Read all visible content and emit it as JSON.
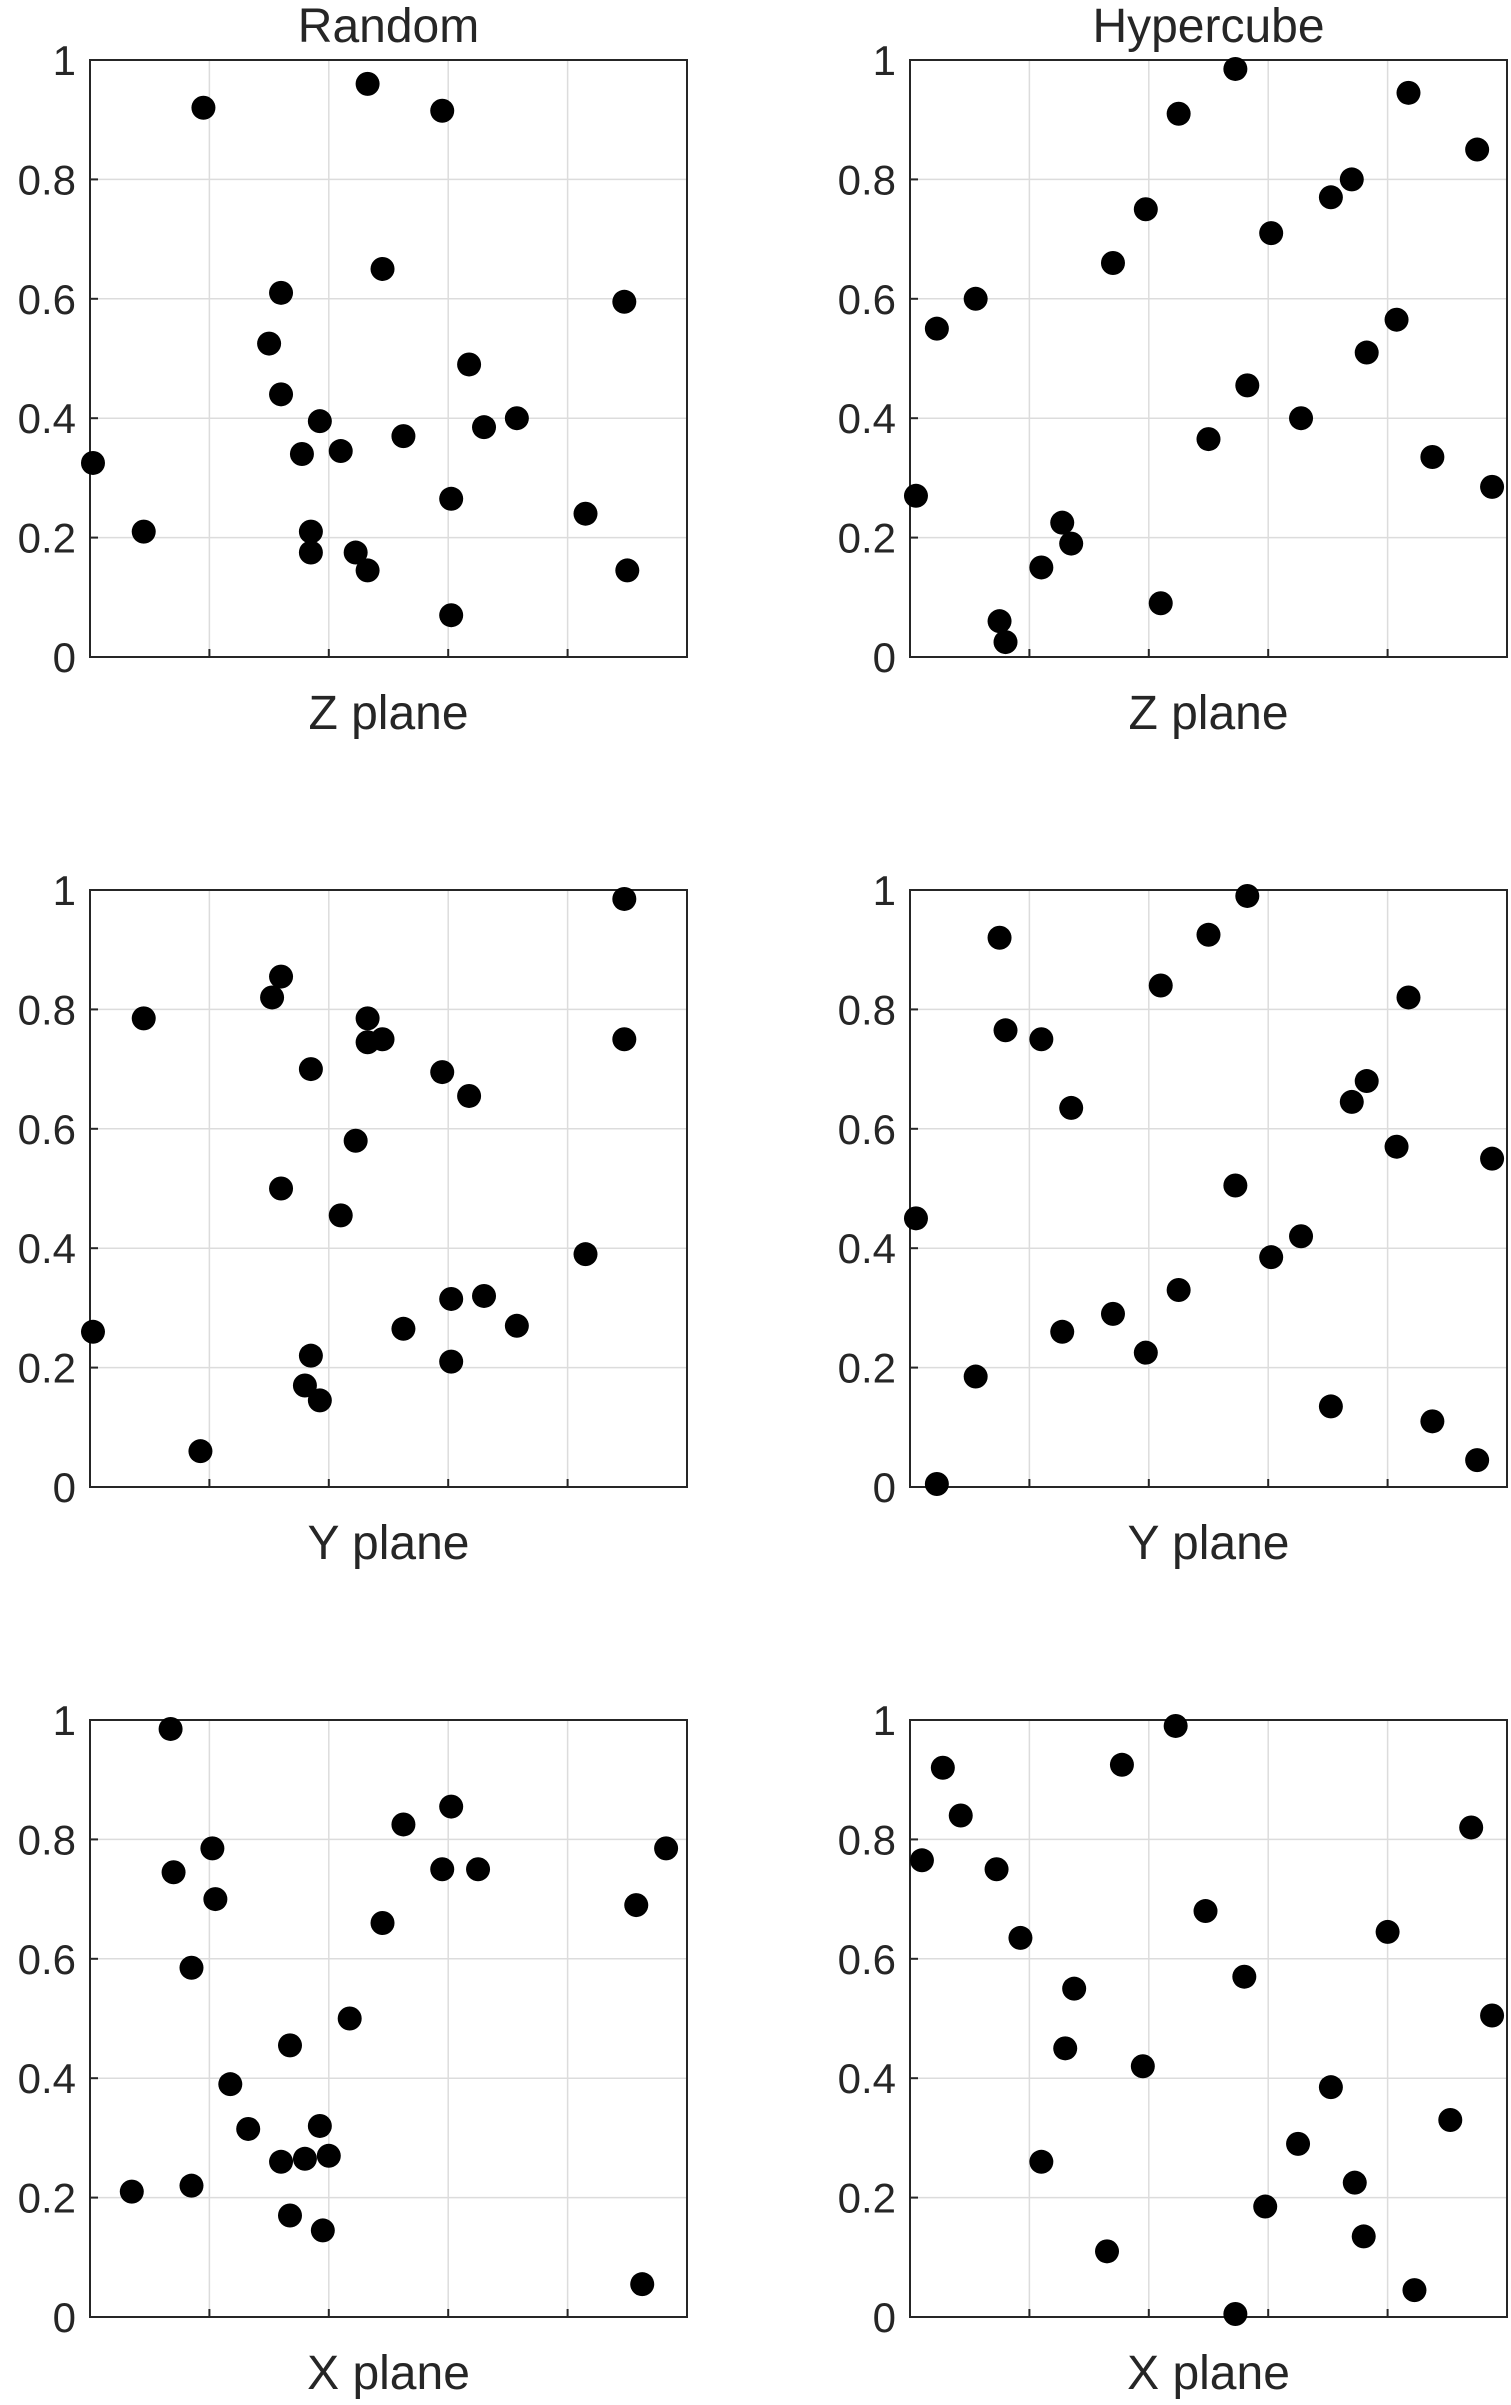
{
  "chart_data": [
    {
      "type": "scatter",
      "title": "Random",
      "xlabel": "Z plane",
      "xlim": [
        0,
        1
      ],
      "ylim": [
        0,
        1
      ],
      "yticks": [
        "0",
        "0.2",
        "0.4",
        "0.6",
        "0.8",
        "1"
      ],
      "grid": true,
      "points": [
        [
          0.005,
          0.325
        ],
        [
          0.09,
          0.21
        ],
        [
          0.19,
          0.92
        ],
        [
          0.3,
          0.525
        ],
        [
          0.32,
          0.61
        ],
        [
          0.32,
          0.44
        ],
        [
          0.355,
          0.34
        ],
        [
          0.37,
          0.21
        ],
        [
          0.37,
          0.175
        ],
        [
          0.385,
          0.395
        ],
        [
          0.42,
          0.345
        ],
        [
          0.445,
          0.175
        ],
        [
          0.465,
          0.145
        ],
        [
          0.465,
          0.96
        ],
        [
          0.49,
          0.65
        ],
        [
          0.525,
          0.37
        ],
        [
          0.59,
          0.915
        ],
        [
          0.605,
          0.07
        ],
        [
          0.605,
          0.265
        ],
        [
          0.635,
          0.49
        ],
        [
          0.66,
          0.385
        ],
        [
          0.715,
          0.4
        ],
        [
          0.83,
          0.24
        ],
        [
          0.895,
          0.595
        ],
        [
          0.9,
          0.145
        ]
      ]
    },
    {
      "type": "scatter",
      "title": "Hypercube",
      "xlabel": "Z plane",
      "xlim": [
        0,
        1
      ],
      "ylim": [
        0,
        1
      ],
      "yticks": [
        "0",
        "0.2",
        "0.4",
        "0.6",
        "0.8",
        "1"
      ],
      "grid": true,
      "points": [
        [
          0.01,
          0.27
        ],
        [
          0.045,
          0.55
        ],
        [
          0.11,
          0.6
        ],
        [
          0.15,
          0.06
        ],
        [
          0.16,
          0.025
        ],
        [
          0.22,
          0.15
        ],
        [
          0.255,
          0.225
        ],
        [
          0.27,
          0.19
        ],
        [
          0.34,
          0.66
        ],
        [
          0.395,
          0.75
        ],
        [
          0.42,
          0.09
        ],
        [
          0.45,
          0.91
        ],
        [
          0.5,
          0.365
        ],
        [
          0.545,
          0.985
        ],
        [
          0.565,
          0.455
        ],
        [
          0.605,
          0.71
        ],
        [
          0.655,
          0.4
        ],
        [
          0.705,
          0.77
        ],
        [
          0.74,
          0.8
        ],
        [
          0.765,
          0.51
        ],
        [
          0.815,
          0.565
        ],
        [
          0.835,
          0.945
        ],
        [
          0.875,
          0.335
        ],
        [
          0.95,
          0.85
        ],
        [
          0.975,
          0.285
        ]
      ]
    },
    {
      "type": "scatter",
      "title": "",
      "xlabel": "Y plane",
      "xlim": [
        0,
        1
      ],
      "ylim": [
        0,
        1
      ],
      "yticks": [
        "0",
        "0.2",
        "0.4",
        "0.6",
        "0.8",
        "1"
      ],
      "grid": true,
      "points": [
        [
          0.005,
          0.26
        ],
        [
          0.09,
          0.785
        ],
        [
          0.185,
          0.06
        ],
        [
          0.305,
          0.82
        ],
        [
          0.32,
          0.855
        ],
        [
          0.32,
          0.5
        ],
        [
          0.36,
          0.17
        ],
        [
          0.37,
          0.7
        ],
        [
          0.37,
          0.22
        ],
        [
          0.385,
          0.145
        ],
        [
          0.42,
          0.455
        ],
        [
          0.445,
          0.58
        ],
        [
          0.465,
          0.785
        ],
        [
          0.465,
          0.745
        ],
        [
          0.49,
          0.75
        ],
        [
          0.525,
          0.265
        ],
        [
          0.59,
          0.695
        ],
        [
          0.605,
          0.315
        ],
        [
          0.605,
          0.21
        ],
        [
          0.635,
          0.655
        ],
        [
          0.66,
          0.32
        ],
        [
          0.715,
          0.27
        ],
        [
          0.83,
          0.39
        ],
        [
          0.895,
          0.985
        ],
        [
          0.895,
          0.75
        ]
      ]
    },
    {
      "type": "scatter",
      "title": "",
      "xlabel": "Y plane",
      "xlim": [
        0,
        1
      ],
      "ylim": [
        0,
        1
      ],
      "yticks": [
        "0",
        "0.2",
        "0.4",
        "0.6",
        "0.8",
        "1"
      ],
      "grid": true,
      "points": [
        [
          0.01,
          0.45
        ],
        [
          0.045,
          0.005
        ],
        [
          0.11,
          0.185
        ],
        [
          0.15,
          0.92
        ],
        [
          0.16,
          0.765
        ],
        [
          0.22,
          0.75
        ],
        [
          0.255,
          0.26
        ],
        [
          0.27,
          0.635
        ],
        [
          0.34,
          0.29
        ],
        [
          0.395,
          0.225
        ],
        [
          0.42,
          0.84
        ],
        [
          0.45,
          0.33
        ],
        [
          0.5,
          0.925
        ],
        [
          0.545,
          0.505
        ],
        [
          0.565,
          0.99
        ],
        [
          0.605,
          0.385
        ],
        [
          0.655,
          0.42
        ],
        [
          0.705,
          0.135
        ],
        [
          0.74,
          0.645
        ],
        [
          0.765,
          0.68
        ],
        [
          0.815,
          0.57
        ],
        [
          0.835,
          0.82
        ],
        [
          0.875,
          0.11
        ],
        [
          0.95,
          0.045
        ],
        [
          0.975,
          0.55
        ]
      ]
    },
    {
      "type": "scatter",
      "title": "",
      "xlabel": "X plane",
      "xlim": [
        0,
        1
      ],
      "ylim": [
        0,
        1
      ],
      "yticks": [
        "0",
        "0.2",
        "0.4",
        "0.6",
        "0.8",
        "1"
      ],
      "grid": true,
      "points": [
        [
          0.07,
          0.21
        ],
        [
          0.135,
          0.985
        ],
        [
          0.14,
          0.745
        ],
        [
          0.17,
          0.585
        ],
        [
          0.17,
          0.22
        ],
        [
          0.205,
          0.785
        ],
        [
          0.21,
          0.7
        ],
        [
          0.235,
          0.39
        ],
        [
          0.265,
          0.315
        ],
        [
          0.32,
          0.26
        ],
        [
          0.335,
          0.455
        ],
        [
          0.335,
          0.17
        ],
        [
          0.36,
          0.265
        ],
        [
          0.385,
          0.32
        ],
        [
          0.39,
          0.145
        ],
        [
          0.4,
          0.27
        ],
        [
          0.435,
          0.5
        ],
        [
          0.49,
          0.66
        ],
        [
          0.525,
          0.825
        ],
        [
          0.59,
          0.75
        ],
        [
          0.605,
          0.855
        ],
        [
          0.65,
          0.75
        ],
        [
          0.915,
          0.69
        ],
        [
          0.925,
          0.055
        ],
        [
          0.965,
          0.785
        ]
      ]
    },
    {
      "type": "scatter",
      "title": "",
      "xlabel": "X plane",
      "xlim": [
        0,
        1
      ],
      "ylim": [
        0,
        1
      ],
      "yticks": [
        "0",
        "0.2",
        "0.4",
        "0.6",
        "0.8",
        "1"
      ],
      "grid": true,
      "points": [
        [
          0.02,
          0.765
        ],
        [
          0.055,
          0.92
        ],
        [
          0.085,
          0.84
        ],
        [
          0.145,
          0.75
        ],
        [
          0.185,
          0.635
        ],
        [
          0.22,
          0.26
        ],
        [
          0.26,
          0.45
        ],
        [
          0.275,
          0.55
        ],
        [
          0.33,
          0.11
        ],
        [
          0.355,
          0.925
        ],
        [
          0.39,
          0.42
        ],
        [
          0.445,
          0.99
        ],
        [
          0.495,
          0.68
        ],
        [
          0.545,
          0.005
        ],
        [
          0.56,
          0.57
        ],
        [
          0.595,
          0.185
        ],
        [
          0.65,
          0.29
        ],
        [
          0.705,
          0.385
        ],
        [
          0.745,
          0.225
        ],
        [
          0.76,
          0.135
        ],
        [
          0.8,
          0.645
        ],
        [
          0.845,
          0.045
        ],
        [
          0.905,
          0.33
        ],
        [
          0.94,
          0.82
        ],
        [
          0.975,
          0.505
        ]
      ]
    }
  ]
}
